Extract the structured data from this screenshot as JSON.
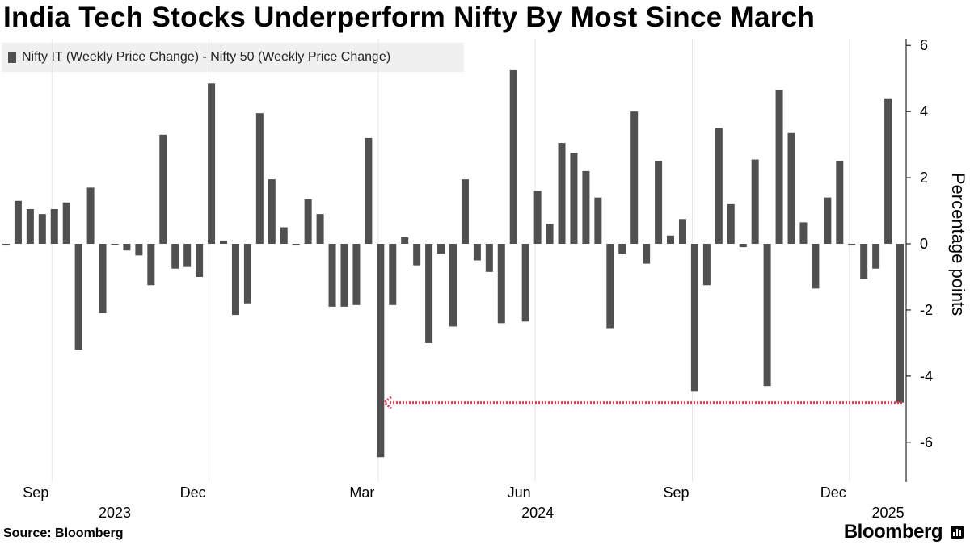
{
  "title": "India Tech Stocks Underperform Nifty By Most Since March",
  "legend": {
    "label": "Nifty IT (Weekly Price Change) - Nifty 50 (Weekly Price Change)",
    "color": "#505050"
  },
  "source": "Source: Bloomberg",
  "brand": "Bloomberg",
  "chart_data": {
    "type": "bar",
    "ylabel": "Percentage points",
    "ylim": [
      -7.2,
      6.2
    ],
    "yticks": [
      6,
      4,
      2,
      0,
      -2,
      -4,
      -6
    ],
    "values": [
      -0.05,
      1.3,
      1.05,
      0.9,
      1.05,
      1.25,
      -3.2,
      1.7,
      -2.1,
      0.0,
      -0.2,
      -0.35,
      -1.25,
      3.3,
      -0.75,
      -0.7,
      -1.0,
      4.85,
      0.1,
      -2.15,
      -1.8,
      3.95,
      1.95,
      0.5,
      -0.05,
      1.35,
      0.9,
      -1.9,
      -1.9,
      -1.85,
      3.2,
      -6.45,
      -1.85,
      0.2,
      -0.65,
      -3.0,
      -0.3,
      -2.5,
      1.95,
      -0.5,
      -0.85,
      -2.4,
      5.25,
      -2.35,
      1.6,
      0.6,
      3.05,
      2.75,
      2.2,
      1.4,
      -2.55,
      -0.3,
      4.0,
      -0.6,
      2.5,
      0.25,
      0.75,
      -4.45,
      -1.25,
      3.5,
      1.2,
      -0.1,
      2.55,
      -4.3,
      4.65,
      3.35,
      0.65,
      -1.35,
      1.4,
      2.5,
      -0.05,
      -1.05,
      -0.75,
      4.4,
      -4.8
    ],
    "x_month_labels": [
      {
        "label": "Sep",
        "index": 3
      },
      {
        "label": "Dec",
        "index": 16
      },
      {
        "label": "Mar",
        "index": 30
      },
      {
        "label": "Jun",
        "index": 43
      },
      {
        "label": "Sep",
        "index": 56
      },
      {
        "label": "Dec",
        "index": 69
      }
    ],
    "x_year_labels": [
      {
        "label": "2023",
        "index": 9
      },
      {
        "label": "2024",
        "index": 44
      },
      {
        "label": "2025",
        "index": 73
      }
    ],
    "annotation": {
      "type": "dotted-arrow",
      "from_index": 74,
      "to_index": 32,
      "y": -4.8,
      "color": "#e8334a"
    }
  }
}
